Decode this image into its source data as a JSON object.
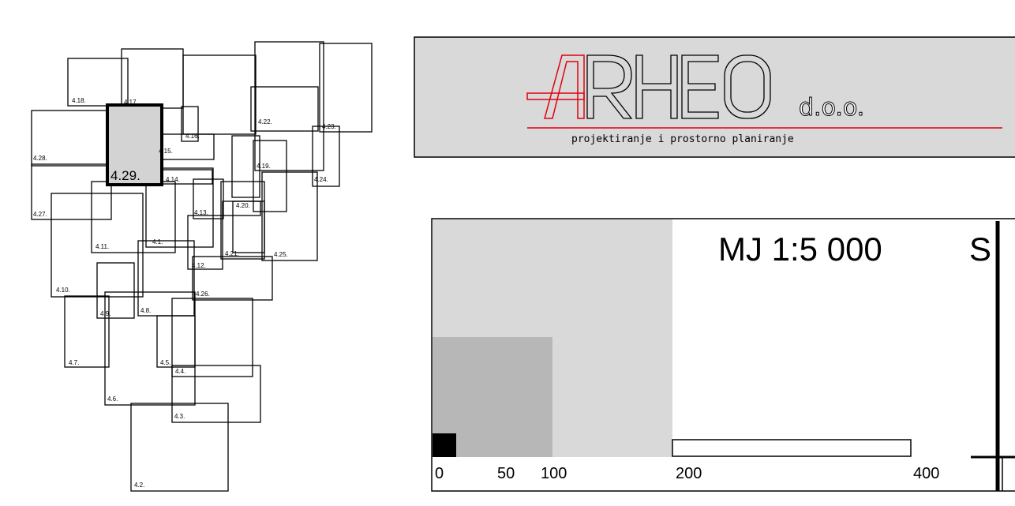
{
  "map": {
    "sheets": [
      {
        "label": "4.2."
      },
      {
        "label": "4.3."
      },
      {
        "label": "4.4."
      },
      {
        "label": "4.5."
      },
      {
        "label": "4.6."
      },
      {
        "label": "4.7."
      },
      {
        "label": "4.8."
      },
      {
        "label": "4.9."
      },
      {
        "label": "4.10."
      },
      {
        "label": "4.11."
      },
      {
        "label": "4.1."
      },
      {
        "label": "4.12."
      },
      {
        "label": "4.13."
      },
      {
        "label": "4.14."
      },
      {
        "label": "4.15."
      },
      {
        "label": "4.16."
      },
      {
        "label": "4.17."
      },
      {
        "label": "4.18."
      },
      {
        "label": "4.19."
      },
      {
        "label": "4.20."
      },
      {
        "label": "4.21."
      },
      {
        "label": "4.22."
      },
      {
        "label": "4.23."
      },
      {
        "label": "4.24."
      },
      {
        "label": "4.25."
      },
      {
        "label": "4.26."
      },
      {
        "label": "4.27."
      },
      {
        "label": "4.28."
      }
    ],
    "highlighted_sheet": {
      "label": "4.29."
    }
  },
  "logo": {
    "name": "ARHEO",
    "suffix": "d.o.o.",
    "tagline": "projektiranje i prostorno planiranje",
    "colors": {
      "accent": "#e2000f",
      "background": "#d9d9d9"
    }
  },
  "scale": {
    "title": "MJ 1:5 000",
    "north_letter": "S",
    "ticks": [
      "0",
      "50",
      "100",
      "200",
      "400"
    ],
    "colors": {
      "light": "#d9d9d9",
      "medium": "#b7b7b7",
      "dark": "#000000"
    }
  }
}
